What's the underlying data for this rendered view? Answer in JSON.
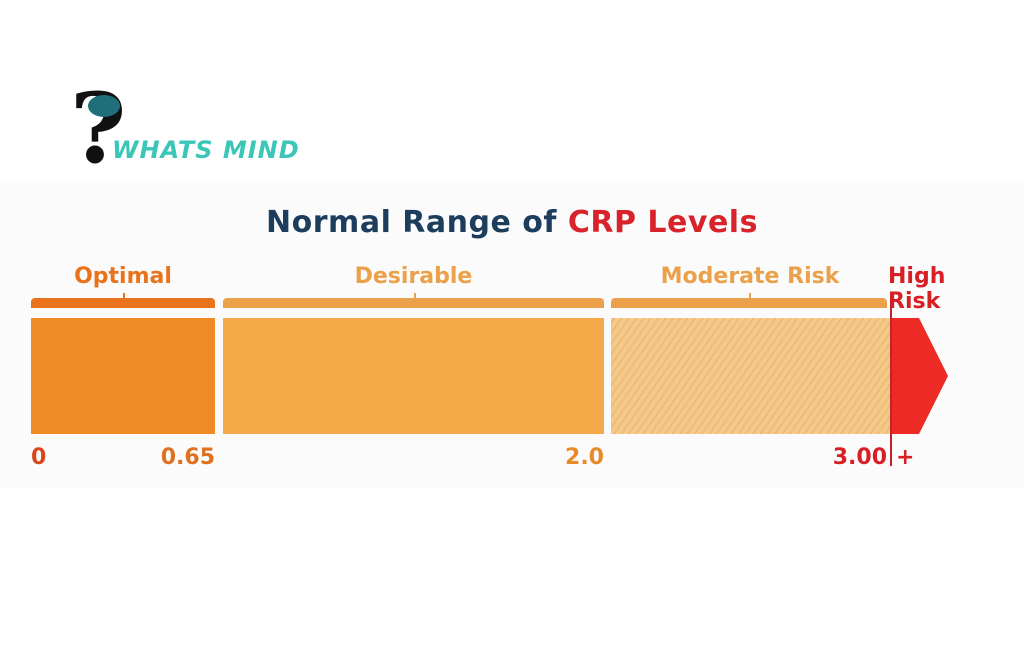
{
  "logo": {
    "text": "WHATS MIND",
    "ring_text": "WHAT'S MIND"
  },
  "title": {
    "part1": "Normal Range of",
    "part2": "CRP Levels"
  },
  "segments": [
    {
      "label": "Optimal",
      "start": "0",
      "end": "0.65",
      "color": "#f08a24"
    },
    {
      "label": "Desirable",
      "end": "2.0",
      "color": "#f5aa4a"
    },
    {
      "label": "Moderate Risk",
      "end": "3.00",
      "color": "#f5c98a"
    },
    {
      "label": "High Risk",
      "end": "+",
      "color": "#ee2a24"
    }
  ]
}
